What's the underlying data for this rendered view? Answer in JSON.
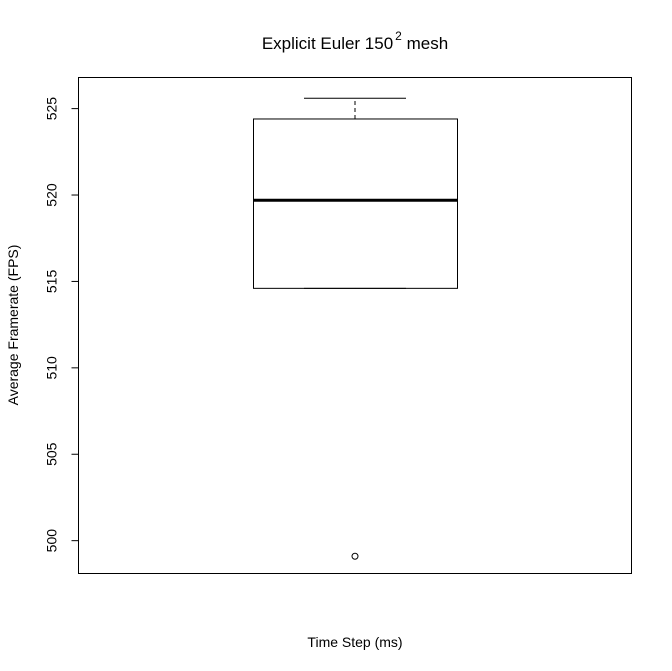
{
  "chart_data": {
    "type": "box",
    "title": {
      "main": "Explicit Euler  150",
      "superscript": "2",
      "suffix": "  mesh"
    },
    "xlabel": "Time Step (ms)",
    "ylabel": "Average Framerate (FPS)",
    "yticks": [
      500,
      505,
      510,
      515,
      520,
      525
    ],
    "ylim": [
      498.1,
      526.8
    ],
    "grid": false,
    "box": {
      "whisker_low": 514.6,
      "q1": 514.6,
      "median": 519.7,
      "q3": 524.4,
      "whisker_high": 525.6,
      "outliers": [
        499.1
      ]
    }
  }
}
